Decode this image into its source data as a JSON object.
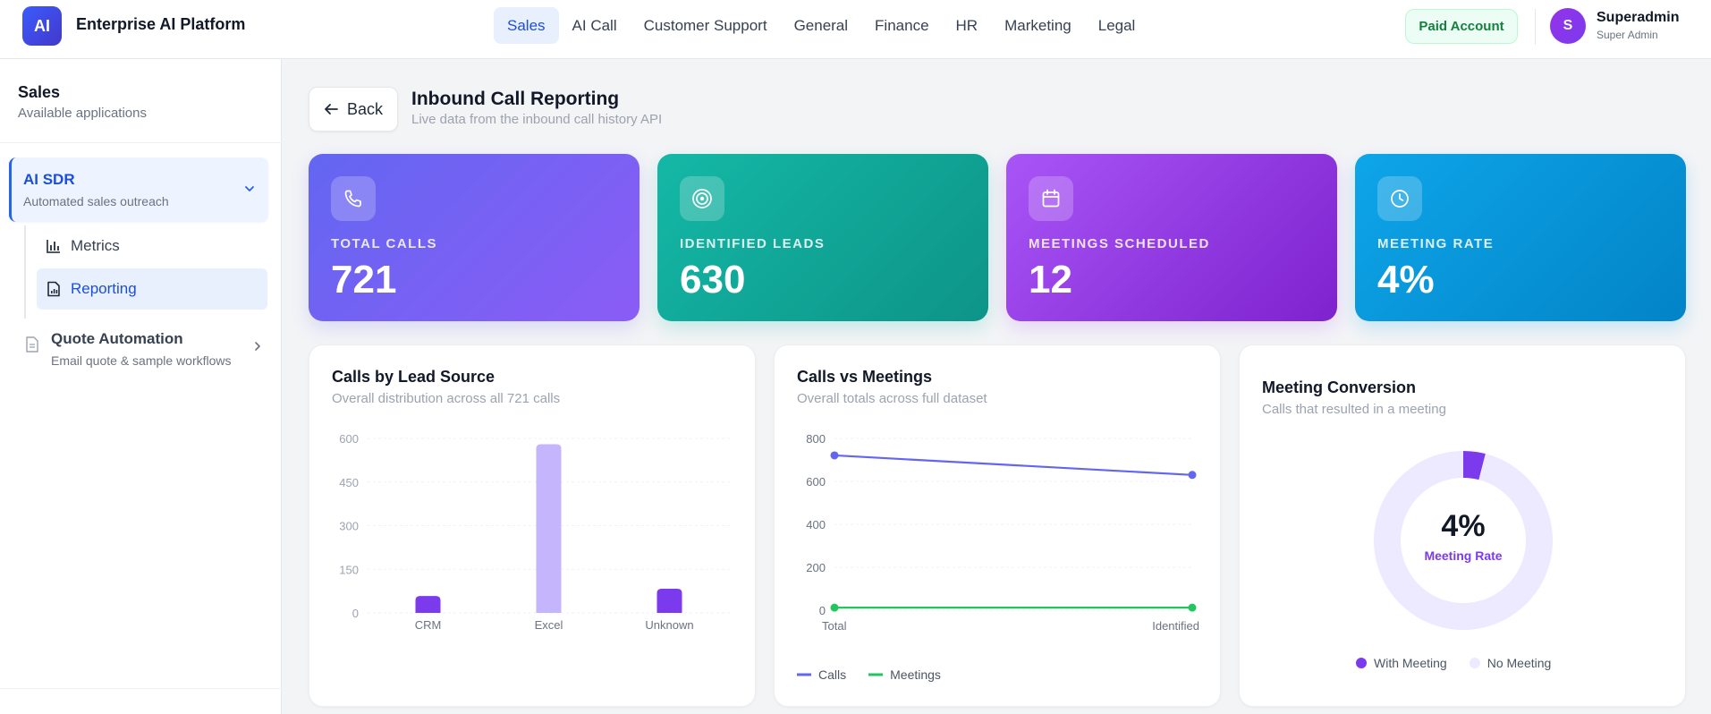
{
  "app": {
    "logo_text": "AI",
    "brand": "Enterprise AI Platform",
    "colors": {
      "primary": "#2563eb",
      "accent_purple": "#7c3aed",
      "green": "#22c55e"
    }
  },
  "nav": {
    "items": [
      "Sales",
      "AI Call",
      "Customer Support",
      "General",
      "Finance",
      "HR",
      "Marketing",
      "Legal"
    ],
    "active": "Sales"
  },
  "account": {
    "badge": "Paid Account",
    "avatar_initial": "S",
    "name": "Superadmin",
    "role": "Super Admin"
  },
  "sidebar": {
    "title": "Sales",
    "subtitle": "Available applications",
    "apps": [
      {
        "title": "AI SDR",
        "subtitle": "Automated sales outreach",
        "expanded": true
      },
      {
        "title": "Quote Automation",
        "subtitle": "Email quote & sample workflows",
        "expanded": false
      }
    ],
    "sub_items": [
      {
        "label": "Metrics",
        "icon": "bar-chart-icon"
      },
      {
        "label": "Reporting",
        "icon": "report-icon",
        "active": true
      }
    ]
  },
  "page": {
    "back_label": "Back",
    "title": "Inbound Call Reporting",
    "subtitle": "Live data from the inbound call history API"
  },
  "stats": [
    {
      "label": "TOTAL CALLS",
      "value": "721",
      "icon": "phone-icon"
    },
    {
      "label": "IDENTIFIED LEADS",
      "value": "630",
      "icon": "target-icon"
    },
    {
      "label": "MEETINGS SCHEDULED",
      "value": "12",
      "icon": "calendar-icon"
    },
    {
      "label": "MEETING RATE",
      "value": "4%",
      "icon": "clock-icon"
    }
  ],
  "charts": {
    "lead_source": {
      "title": "Calls by Lead Source",
      "subtitle": "Overall distribution across all 721 calls"
    },
    "calls_meetings": {
      "title": "Calls vs Meetings",
      "subtitle": "Overall totals across full dataset",
      "legend": [
        "Calls",
        "Meetings"
      ]
    },
    "conversion": {
      "title": "Meeting Conversion",
      "subtitle": "Calls that resulted in a meeting",
      "center_value": "4%",
      "center_label": "Meeting Rate",
      "legend": [
        "With Meeting",
        "No Meeting"
      ]
    }
  },
  "chart_data": [
    {
      "type": "bar",
      "title": "Calls by Lead Source",
      "categories": [
        "CRM",
        "Excel",
        "Unknown"
      ],
      "values": [
        58,
        580,
        83
      ],
      "yticks": [
        0,
        150,
        300,
        450,
        600
      ],
      "ylim": [
        0,
        600
      ],
      "colors": [
        "#7c3aed",
        "#c4b5fd",
        "#7c3aed"
      ],
      "grid": true
    },
    {
      "type": "line",
      "title": "Calls vs Meetings",
      "categories": [
        "Total",
        "Identified"
      ],
      "series": [
        {
          "name": "Calls",
          "values": [
            721,
            630
          ],
          "color": "#6366f1"
        },
        {
          "name": "Meetings",
          "values": [
            12,
            12
          ],
          "color": "#22c55e"
        }
      ],
      "yticks": [
        0,
        200,
        400,
        600,
        800
      ],
      "ylim": [
        0,
        800
      ],
      "grid": true,
      "legend": "bottom"
    },
    {
      "type": "pie",
      "title": "Meeting Conversion",
      "labels": [
        "With Meeting",
        "No Meeting"
      ],
      "values": [
        4,
        96
      ],
      "colors": [
        "#7c3aed",
        "#ede9fe"
      ],
      "donut": true
    }
  ]
}
